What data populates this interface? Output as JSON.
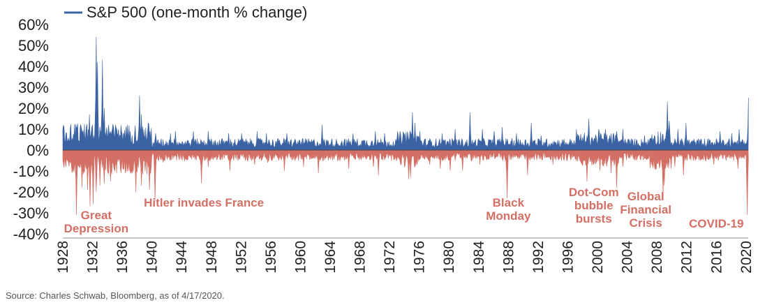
{
  "chart_data": {
    "type": "area",
    "title": "",
    "xlabel": "",
    "ylabel": "",
    "series_name": "S&P 500 (one-month % change)",
    "x_range": [
      1928,
      2020.3
    ],
    "ylim": [
      -40,
      60
    ],
    "y_ticks": [
      "60%",
      "50%",
      "40%",
      "30%",
      "20%",
      "10%",
      "0%",
      "-10%",
      "-20%",
      "-30%",
      "-40%"
    ],
    "y_tick_values": [
      60,
      50,
      40,
      30,
      20,
      10,
      0,
      -10,
      -20,
      -30,
      -40
    ],
    "x_ticks": [
      "1928",
      "1932",
      "1936",
      "1940",
      "1944",
      "1948",
      "1952",
      "1956",
      "1960",
      "1964",
      "1968",
      "1972",
      "1976",
      "1980",
      "1984",
      "1988",
      "1992",
      "1996",
      "2000",
      "2004",
      "2008",
      "2012",
      "2016",
      "2020"
    ],
    "grid": false,
    "legend": "top-left",
    "colors": {
      "positive": "#3b63a3",
      "negative": "#d36f64",
      "annotation": "#d36f64"
    },
    "positive_spikes": [
      [
        1928.1,
        11
      ],
      [
        1929.0,
        10
      ],
      [
        1929.9,
        11
      ],
      [
        1930.6,
        9
      ],
      [
        1931.2,
        10
      ],
      [
        1931.6,
        17
      ],
      [
        1932.5,
        54
      ],
      [
        1932.7,
        42
      ],
      [
        1933.3,
        43
      ],
      [
        1933.6,
        20
      ],
      [
        1934.2,
        12
      ],
      [
        1935.5,
        10
      ],
      [
        1937.1,
        9
      ],
      [
        1938.3,
        26
      ],
      [
        1938.6,
        17
      ],
      [
        1939.5,
        13
      ],
      [
        1940.5,
        8
      ],
      [
        1942.5,
        8
      ],
      [
        1943.2,
        9
      ],
      [
        1945.6,
        9
      ],
      [
        1947.6,
        9
      ],
      [
        1950.3,
        8
      ],
      [
        1952.1,
        8
      ],
      [
        1954.2,
        9
      ],
      [
        1955.4,
        8
      ],
      [
        1958.2,
        8
      ],
      [
        1962.9,
        12
      ],
      [
        1967.1,
        8
      ],
      [
        1970.1,
        9
      ],
      [
        1971.3,
        8
      ],
      [
        1973.9,
        7
      ],
      [
        1975.1,
        18
      ],
      [
        1975.4,
        13
      ],
      [
        1976.1,
        9
      ],
      [
        1979.1,
        8
      ],
      [
        1980.8,
        10
      ],
      [
        1982.8,
        18
      ],
      [
        1984.5,
        10
      ],
      [
        1986.1,
        9
      ],
      [
        1987.2,
        11
      ],
      [
        1989.1,
        8
      ],
      [
        1991.1,
        13
      ],
      [
        1992.4,
        7
      ],
      [
        1997.2,
        10
      ],
      [
        1998.8,
        15
      ],
      [
        2000.2,
        10
      ],
      [
        2001.1,
        10
      ],
      [
        2002.6,
        9
      ],
      [
        2003.4,
        10
      ],
      [
        2006.3,
        7
      ],
      [
        2009.4,
        23
      ],
      [
        2009.7,
        14
      ],
      [
        2010.8,
        10
      ],
      [
        2011.9,
        13
      ],
      [
        2016.5,
        9
      ],
      [
        2018.1,
        8
      ],
      [
        2019.1,
        10
      ],
      [
        2020.3,
        25
      ]
    ],
    "negative_spikes": [
      [
        1928.4,
        -8
      ],
      [
        1929.8,
        -31
      ],
      [
        1930.6,
        -18
      ],
      [
        1931.3,
        -19
      ],
      [
        1931.7,
        -27
      ],
      [
        1932.1,
        -26
      ],
      [
        1932.5,
        -20
      ],
      [
        1933.0,
        -17
      ],
      [
        1933.6,
        -16
      ],
      [
        1934.4,
        -15
      ],
      [
        1935.0,
        -10
      ],
      [
        1936.8,
        -10
      ],
      [
        1937.8,
        -20
      ],
      [
        1938.6,
        -17
      ],
      [
        1939.7,
        -19
      ],
      [
        1940.4,
        -24
      ],
      [
        1941.5,
        -6
      ],
      [
        1942.4,
        -5
      ],
      [
        1946.7,
        -16
      ],
      [
        1947.6,
        -8
      ],
      [
        1950.5,
        -10
      ],
      [
        1953.8,
        -7
      ],
      [
        1955.6,
        -6
      ],
      [
        1957.8,
        -10
      ],
      [
        1960.4,
        -8
      ],
      [
        1962.4,
        -11
      ],
      [
        1966.5,
        -9
      ],
      [
        1969.8,
        -8
      ],
      [
        1970.5,
        -12
      ],
      [
        1974.6,
        -14
      ],
      [
        1974.8,
        -13
      ],
      [
        1977.4,
        -7
      ],
      [
        1978.8,
        -9
      ],
      [
        1980.2,
        -10
      ],
      [
        1981.8,
        -10
      ],
      [
        1984.2,
        -7
      ],
      [
        1987.8,
        -23
      ],
      [
        1990.6,
        -12
      ],
      [
        1994.0,
        -7
      ],
      [
        1998.6,
        -15
      ],
      [
        2000.3,
        -10
      ],
      [
        2001.8,
        -11
      ],
      [
        2002.6,
        -18
      ],
      [
        2003.4,
        -8
      ],
      [
        2007.9,
        -9
      ],
      [
        2008.8,
        -22
      ],
      [
        2009.0,
        -17
      ],
      [
        2010.4,
        -8
      ],
      [
        2011.6,
        -12
      ],
      [
        2015.7,
        -7
      ],
      [
        2018.9,
        -9
      ],
      [
        2020.2,
        -31
      ]
    ],
    "annotations": [
      {
        "lines": [
          "Great",
          "Depression"
        ],
        "x": 1932.5,
        "y": -33
      },
      {
        "lines": [
          "Hitler invades France"
        ],
        "x": 1947,
        "y": -27
      },
      {
        "lines": [
          "Black",
          "Monday"
        ],
        "x": 1988,
        "y": -27
      },
      {
        "lines": [
          "Dot-Com",
          "bubble",
          "bursts"
        ],
        "x": 1999.5,
        "y": -22
      },
      {
        "lines": [
          "Global",
          "Financial",
          "Crisis"
        ],
        "x": 2006.5,
        "y": -24
      },
      {
        "lines": [
          "COVID-19"
        ],
        "x": 2016,
        "y": -37
      }
    ],
    "source": "Source: Charles Schwab, Bloomberg, as of 4/17/2020."
  }
}
